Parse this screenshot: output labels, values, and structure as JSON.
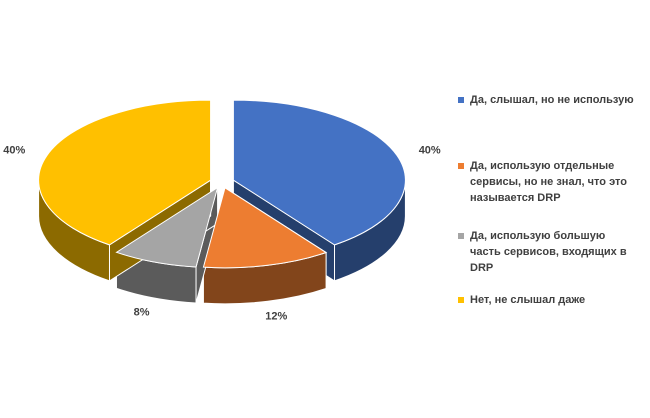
{
  "chart_data": {
    "type": "pie3d",
    "categories": [
      "Да, слышал, но не использую",
      "Да, использую отдельные сервисы, но не знал, что это называется DRP",
      "Да, использую большую часть сервисов, входящих в DRP",
      "Нет, не слышал даже"
    ],
    "values": [
      40,
      12,
      8,
      40
    ],
    "value_labels": [
      "40%",
      "12%",
      "8%",
      "40%"
    ],
    "colors": [
      "#4472c4",
      "#ed7d31",
      "#a5a5a5",
      "#ffc000"
    ],
    "legend": "right"
  }
}
